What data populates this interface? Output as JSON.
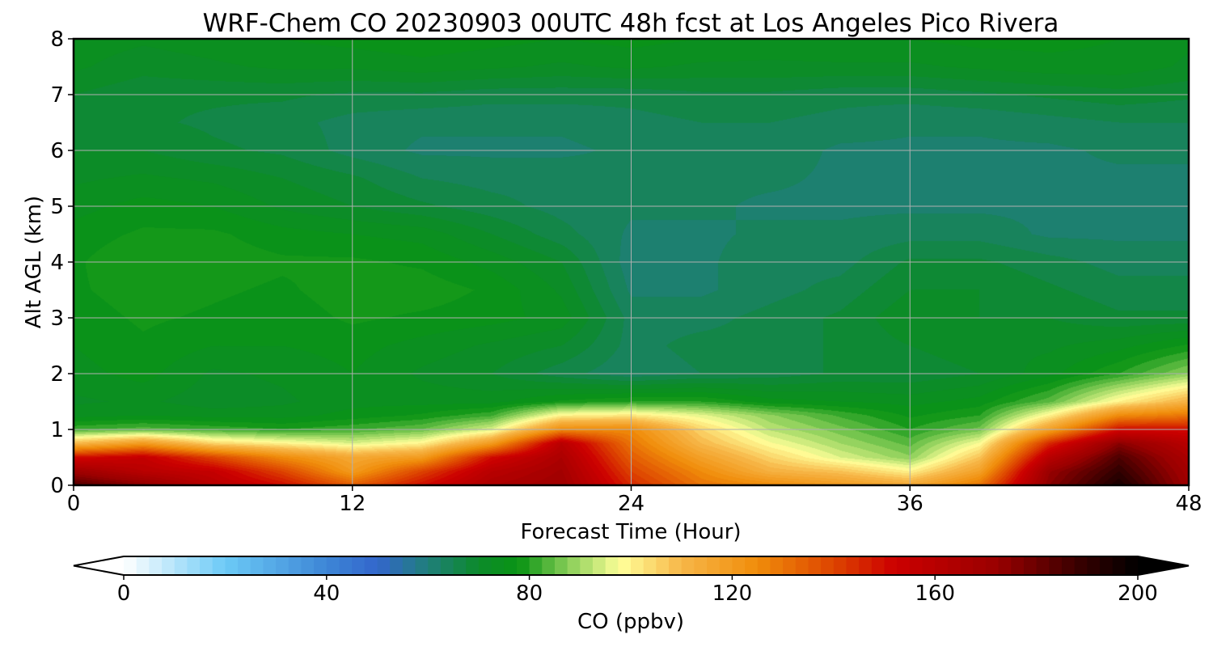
{
  "chart_data": {
    "type": "heatmap",
    "title": "WRF-Chem CO  20230903 00UTC 48h fcst at Los Angeles Pico Rivera",
    "xlabel": "Forecast Time (Hour)",
    "ylabel": "Alt AGL (km)",
    "xlim": [
      0,
      48
    ],
    "ylim": [
      0,
      8
    ],
    "x_ticks": [
      0,
      12,
      24,
      36,
      48
    ],
    "y_ticks": [
      0,
      1,
      2,
      3,
      4,
      5,
      6,
      7,
      8
    ],
    "grid": true,
    "x": [
      0,
      3,
      6,
      9,
      12,
      15,
      18,
      21,
      24,
      27,
      30,
      33,
      36,
      39,
      42,
      45,
      48
    ],
    "y": [
      0,
      0.25,
      0.5,
      0.75,
      1,
      1.25,
      1.5,
      2,
      2.5,
      3,
      3.5,
      4,
      4.5,
      5,
      5.5,
      6,
      6.5,
      7,
      7.5,
      8
    ],
    "z": [
      [
        185,
        175,
        160,
        150,
        135,
        150,
        165,
        170,
        145,
        130,
        125,
        120,
        115,
        130,
        175,
        195,
        170
      ],
      [
        170,
        160,
        155,
        140,
        120,
        140,
        160,
        168,
        140,
        125,
        112,
        108,
        100,
        118,
        172,
        190,
        168
      ],
      [
        150,
        155,
        140,
        125,
        115,
        120,
        150,
        165,
        135,
        118,
        105,
        95,
        88,
        108,
        160,
        185,
        165
      ],
      [
        110,
        120,
        105,
        100,
        95,
        100,
        120,
        160,
        130,
        110,
        98,
        90,
        84,
        98,
        145,
        175,
        160
      ],
      [
        82,
        84,
        82,
        80,
        82,
        85,
        95,
        125,
        125,
        105,
        92,
        86,
        80,
        86,
        118,
        150,
        150
      ],
      [
        74,
        75,
        74,
        74,
        76,
        78,
        82,
        100,
        102,
        96,
        88,
        82,
        77,
        80,
        100,
        125,
        130
      ],
      [
        72,
        73,
        71,
        72,
        74,
        74,
        74,
        78,
        80,
        80,
        76,
        75,
        74,
        76,
        84,
        100,
        112
      ],
      [
        74,
        76,
        72,
        73,
        75,
        72,
        70,
        66,
        63,
        65,
        66,
        68,
        68,
        70,
        74,
        80,
        88
      ],
      [
        75,
        77,
        75,
        75,
        76,
        74,
        72,
        70,
        64,
        66,
        66,
        68,
        70,
        72,
        72,
        74,
        78
      ],
      [
        76,
        78,
        77,
        76,
        78,
        77,
        76,
        74,
        64,
        64,
        66,
        68,
        72,
        70,
        70,
        68,
        68
      ],
      [
        77,
        79,
        78,
        77,
        79,
        79,
        77,
        72,
        62,
        62,
        64,
        66,
        70,
        70,
        68,
        66,
        66
      ],
      [
        77,
        80,
        79,
        78,
        78,
        77,
        74,
        70,
        61,
        62,
        64,
        64,
        68,
        68,
        66,
        64,
        64
      ],
      [
        76,
        78,
        78,
        76,
        75,
        74,
        70,
        66,
        62,
        62,
        63,
        63,
        64,
        64,
        62,
        62,
        62
      ],
      [
        74,
        76,
        75,
        72,
        70,
        68,
        66,
        64,
        63,
        63,
        62,
        62,
        62,
        62,
        62,
        62,
        62
      ],
      [
        72,
        73,
        72,
        70,
        68,
        65,
        64,
        64,
        63,
        63,
        63,
        62,
        62,
        62,
        62,
        62,
        62
      ],
      [
        70,
        70,
        68,
        67,
        64,
        62,
        62,
        62,
        63,
        64,
        64,
        62,
        62,
        62,
        62,
        63,
        63
      ],
      [
        69,
        68,
        67,
        66,
        64,
        63,
        63,
        63,
        64,
        65,
        65,
        64,
        63,
        63,
        64,
        65,
        65
      ],
      [
        70,
        68,
        68,
        68,
        67,
        67,
        66,
        66,
        66,
        67,
        67,
        66,
        66,
        67,
        68,
        69,
        68
      ],
      [
        73,
        71,
        72,
        73,
        73,
        74,
        73,
        72,
        73,
        72,
        72,
        72,
        72,
        73,
        74,
        74,
        72
      ],
      [
        74,
        73,
        74,
        75,
        76,
        77,
        76,
        75,
        76,
        75,
        74,
        75,
        75,
        76,
        76,
        75,
        73
      ]
    ],
    "colorbar": {
      "label": "CO  (ppbv)",
      "min": 0,
      "max": 200,
      "ticks": [
        0,
        40,
        80,
        120,
        160,
        200
      ],
      "extend": "both",
      "stops": [
        {
          "v": 0,
          "c": "#ffffff"
        },
        {
          "v": 20,
          "c": "#6ccaf6"
        },
        {
          "v": 40,
          "c": "#3d86d6"
        },
        {
          "v": 50,
          "c": "#3366cc"
        },
        {
          "v": 60,
          "c": "#1f7f7a"
        },
        {
          "v": 70,
          "c": "#0c8a2a"
        },
        {
          "v": 78,
          "c": "#0a9414"
        },
        {
          "v": 88,
          "c": "#8ccf5a"
        },
        {
          "v": 98,
          "c": "#ffff99"
        },
        {
          "v": 110,
          "c": "#f7b648"
        },
        {
          "v": 125,
          "c": "#f08c0a"
        },
        {
          "v": 140,
          "c": "#dd4400"
        },
        {
          "v": 152,
          "c": "#cc0000"
        },
        {
          "v": 172,
          "c": "#9a0000"
        },
        {
          "v": 188,
          "c": "#3a0000"
        },
        {
          "v": 200,
          "c": "#000000"
        }
      ]
    }
  }
}
